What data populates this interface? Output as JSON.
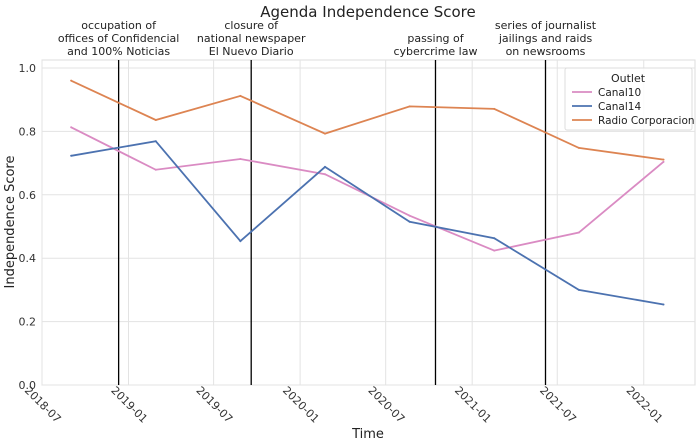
{
  "chart_data": {
    "type": "line",
    "title": "Agenda Independence Score",
    "xlabel": "Time",
    "ylabel": "Independence Score",
    "ylim": [
      0,
      1.0
    ],
    "xlim": [
      "2018-07-01",
      "2022-04-20"
    ],
    "grid": true,
    "legend": {
      "title": "Outlet",
      "placement": "top-right"
    },
    "xticks": [
      "2018-07",
      "2019-01",
      "2019-07",
      "2020-01",
      "2020-07",
      "2021-01",
      "2021-07",
      "2022-01"
    ],
    "yticks": [
      "0.0",
      "0.2",
      "0.4",
      "0.6",
      "0.8",
      "1.0"
    ],
    "x": [
      "2018-09-01",
      "2019-02-28",
      "2019-08-27",
      "2020-02-23",
      "2020-08-21",
      "2021-02-17",
      "2021-08-16",
      "2022-02-12"
    ],
    "series": [
      {
        "name": "Canal10",
        "color": "#da8bc3",
        "values": [
          0.813,
          0.679,
          0.713,
          0.665,
          0.534,
          0.424,
          0.481,
          0.704
        ]
      },
      {
        "name": "Canal14",
        "color": "#4c72b0",
        "values": [
          0.723,
          0.769,
          0.454,
          0.688,
          0.515,
          0.463,
          0.3,
          0.254
        ]
      },
      {
        "name": "Radio Corporacion",
        "color": "#dd8452",
        "values": [
          0.96,
          0.836,
          0.912,
          0.793,
          0.879,
          0.871,
          0.748,
          0.711
        ]
      }
    ],
    "events": [
      {
        "date": "2018-12-11",
        "label": [
          "occupation of",
          "offices of Confidencial",
          "and 100% Noticias"
        ]
      },
      {
        "date": "2019-09-19",
        "label": [
          "closure of",
          "national newspaper",
          "El Nuevo Diario"
        ]
      },
      {
        "date": "2020-10-15",
        "label": [
          "passing of",
          "cybercrime law"
        ]
      },
      {
        "date": "2021-06-06",
        "label": [
          "series of journalist",
          "jailings and raids",
          "on newsrooms"
        ]
      }
    ]
  }
}
